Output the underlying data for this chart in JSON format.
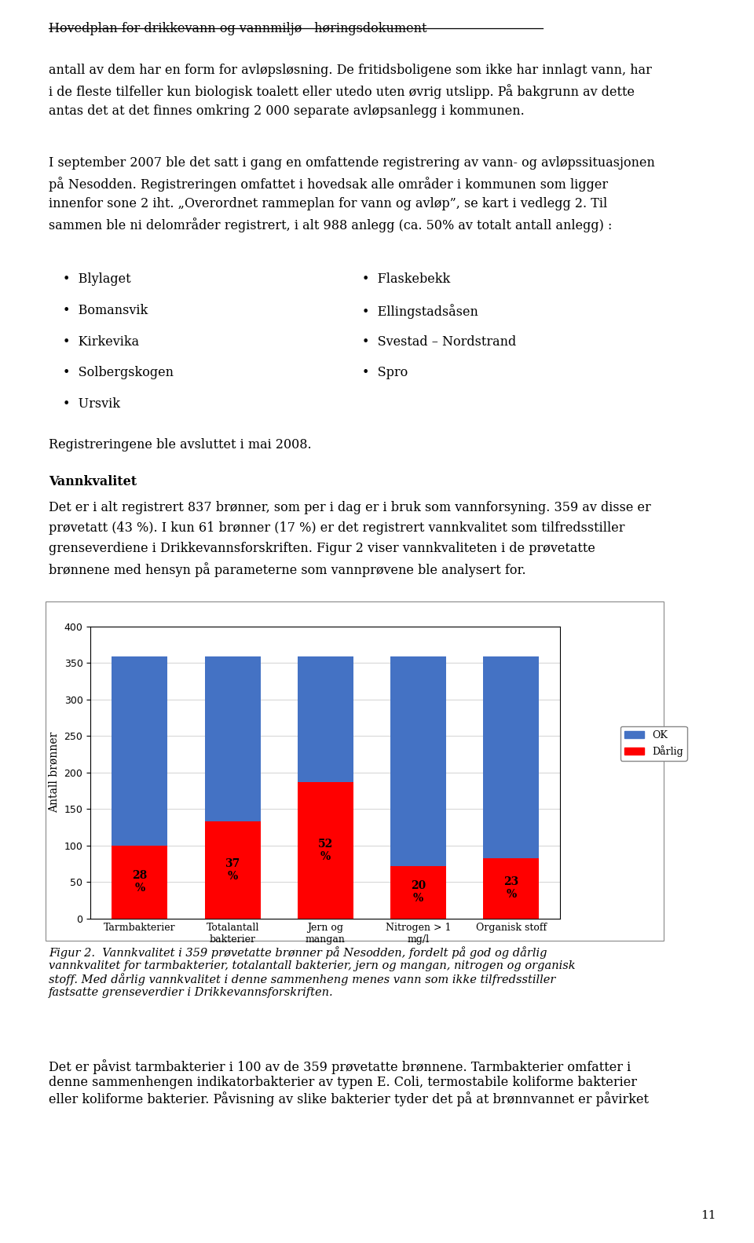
{
  "title_header": "Hovedplan for drikkevann og vannmiljø - høringsdokument",
  "para1": "antall av dem har en form for avløpsløsning. De fritidsboligene som ikke har innlagt vann, har\ni de fleste tilfeller kun biologisk toalett eller utedo uten øvrig utslipp. På bakgrunn av dette\nantas det at det finnes omkring 2 000 separate avløpsanlegg i kommunen.",
  "para2_line1": "I september 2007 ble det satt i gang en omfattende registrering av vann- og avløpssituasjonen",
  "para2_line2": "på Nesodden. Registreringen omfattet i hovedsak alle områder i kommunen som ligger",
  "para2_line3": "innenfor sone 2 iht. „Overordnet rammeplan for vann og avløp”, se kart i vedlegg 2. Til",
  "para2_line4": "sammen ble ni delområder registrert, i alt 988 anlegg (ca. 50% av totalt antall anlegg) :",
  "bullet_left": [
    "Blylaget",
    "Bomansvik",
    "Kirkevika",
    "Solbergskogen",
    "Ursvik"
  ],
  "bullet_right": [
    "Flaskebekk",
    "Ellingstadsåsen",
    "Svestad – Nordstrand",
    "Spro"
  ],
  "registrering_note": "Registreringene ble avsluttet i mai 2008.",
  "vannkvalitet_heading": "Vannkvalitet",
  "vk_line1": "Det er i alt registrert 837 brønner, som per i dag er i bruk som vannforsyning. 359 av disse er",
  "vk_line2": "prøvetatt (43 %). I kun 61 brønner (17 %) er det registrert vannkvalitet som tilfredsstiller",
  "vk_line3": "grenseverdiene i Drikkevannsforskriften. Figur 2 viser vannkvaliteten i de prøvetatte",
  "vk_line4": "brønnene med hensyn på parameterne som vannprøvene ble analysert for.",
  "categories": [
    "Tarmbakterier",
    "Totalantall\nbakterier",
    "Jern og\nmangan",
    "Nitrogen > 1\nmg/l",
    "Organisk stoff"
  ],
  "darlig_values": [
    100,
    133,
    187,
    72,
    83
  ],
  "darlig_pct": [
    "28\n%",
    "37\n%",
    "52\n%",
    "20\n%",
    "23\n%"
  ],
  "ok_values": [
    259,
    226,
    172,
    287,
    276
  ],
  "y_max": 400,
  "y_ticks": [
    0,
    50,
    100,
    150,
    200,
    250,
    300,
    350,
    400
  ],
  "color_ok": "#4472C4",
  "color_darlig": "#FF0000",
  "ylabel": "Antall brønner",
  "legend_ok": "OK",
  "legend_darlig": "Dårlig",
  "fig_caption_italic": "Figur 2.  Vannkvalitet i 359 prøvetatte brønner på Nesodden, fordelt på god og dårlig\nvannkvalitet for tarmbakterier, totalantall bakterier, jern og mangan, nitrogen og organisk\nstoff. Med dårlig vannkvalitet i denne sammenheng menes vann som ikke tilfredsstiller\nfastsatte grenseverdier i Drikkevannsforskriften.",
  "last_para": "Det er påvist tarmbakterier i 100 av de 359 prøvetatte brønnene. Tarmbakterier omfatter i\ndenne sammenhengen indikatorbakterier av typen E. Coli, termostabile koliforme bakterier\neller koliforme bakterier. Påvisning av slike bakterier tyder det på at brønnvannet er påvirket",
  "page_number": "11",
  "background_color": "#FFFFFF",
  "text_color": "#000000",
  "body_fontsize": 11.5,
  "header_fontsize": 11.5
}
